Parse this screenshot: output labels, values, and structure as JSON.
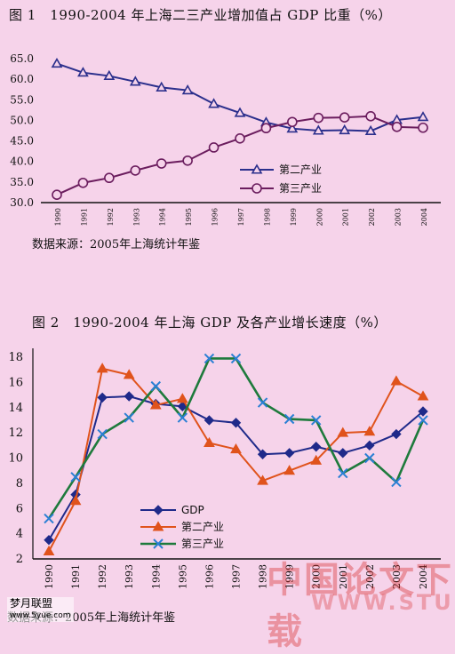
{
  "figure1": {
    "title": "图 1　1990-2004 年上海二三产业增加值占 GDP 比重（%）",
    "source": "数据来源：2005年上海统计年鉴"
  },
  "figure2": {
    "title": "图 2　1990-2004 年上海 GDP 及各产业增长速度（%）",
    "source": "数据来源：2005年上海统计年鉴"
  },
  "watermark": {
    "text": "中国论文下载",
    "url": "WWW.STUDA"
  },
  "corner_logo": {
    "text": "梦月联盟",
    "url": "www.5yue.com"
  },
  "colors": {
    "fig1_secondary": "#2b2f8c",
    "fig1_tertiary": "#6b1d5e",
    "fig2_gdp": "#1f2a8a",
    "fig2_secondary": "#e0531c",
    "fig2_tertiary": "#1e7a3c",
    "fig2_tertiary_marker": "#2a7fd4"
  },
  "chart_data": [
    {
      "type": "line",
      "x": [
        "1990",
        "1991",
        "1992",
        "1993",
        "1994",
        "1995",
        "1996",
        "1997",
        "1998",
        "1999",
        "2000",
        "2001",
        "2002",
        "2003",
        "2004"
      ],
      "ylim": [
        30,
        65
      ],
      "yticks": [
        "30.0",
        "35.0",
        "40.0",
        "45.0",
        "50.0",
        "55.0",
        "60.0",
        "65.0"
      ],
      "grid": false,
      "legend_position": "bottom-center",
      "series": [
        {
          "name": "第二产业",
          "marker": "triangle",
          "values": [
            63.8,
            61.6,
            60.8,
            59.4,
            58.0,
            57.3,
            54.0,
            51.8,
            49.5,
            48.0,
            47.5,
            47.6,
            47.4,
            50.1,
            50.8
          ]
        },
        {
          "name": "第三产业",
          "marker": "circle",
          "values": [
            31.9,
            34.8,
            36.0,
            37.8,
            39.5,
            40.2,
            43.4,
            45.6,
            48.1,
            49.6,
            50.6,
            50.7,
            51.0,
            48.4,
            48.2
          ]
        }
      ]
    },
    {
      "type": "line",
      "x": [
        "1990",
        "1991",
        "1992",
        "1993",
        "1994",
        "1995",
        "1996",
        "1997",
        "1998",
        "1999",
        "2000",
        "2001",
        "2002",
        "2003",
        "2004"
      ],
      "ylim": [
        2,
        18
      ],
      "yticks": [
        "2",
        "4",
        "6",
        "8",
        "10",
        "12",
        "14",
        "16",
        "18"
      ],
      "grid": false,
      "legend_position": "bottom-left",
      "series": [
        {
          "name": "GDP",
          "marker": "diamond",
          "values": [
            3.5,
            7.1,
            14.8,
            14.9,
            14.3,
            14.1,
            13.0,
            12.8,
            10.3,
            10.4,
            10.9,
            10.4,
            11.0,
            11.9,
            13.7
          ]
        },
        {
          "name": "第二产业",
          "marker": "triangle",
          "values": [
            2.6,
            6.6,
            17.1,
            16.6,
            14.2,
            14.7,
            11.2,
            10.7,
            8.2,
            9.0,
            9.8,
            12.0,
            12.1,
            16.1,
            14.9
          ]
        },
        {
          "name": "第三产业",
          "marker": "x",
          "values": [
            5.2,
            8.5,
            11.9,
            13.2,
            15.7,
            13.2,
            17.9,
            17.9,
            14.4,
            13.1,
            13.0,
            8.8,
            10.0,
            8.1,
            13.0
          ]
        }
      ]
    }
  ]
}
